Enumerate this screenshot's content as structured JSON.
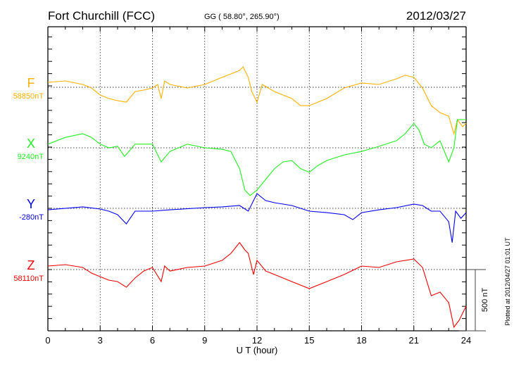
{
  "chart_data": {
    "type": "line",
    "title": "Fort Churchill (FCC)",
    "subtitle": "GG ( 58.80°, 265.90°)",
    "date": "2012/03/27",
    "xlabel": "U T (hour)",
    "xlim": [
      0,
      24
    ],
    "xticks": [
      "0",
      "3",
      "6",
      "9",
      "12",
      "15",
      "18",
      "21",
      "24"
    ],
    "grid": true,
    "scale_bar_label": "500 nT",
    "scale_bar_nT": 500,
    "plotted_note": "Plotted at 2012/04/27 01:01  UT",
    "series": [
      {
        "name": "F",
        "baseline_label": "58850nT",
        "color": "#ffb000",
        "x": [
          0,
          1,
          2,
          2.5,
          3,
          3.5,
          4,
          4.5,
          5,
          5.5,
          6,
          6.3,
          6.5,
          6.7,
          7,
          8,
          9,
          10,
          10.5,
          11,
          11.2,
          11.5,
          11.7,
          12,
          12.3,
          13,
          14,
          14.5,
          15,
          16,
          17,
          18,
          19,
          20,
          20.5,
          21,
          21.5,
          22,
          22.5,
          23,
          23.3,
          23.5,
          23.8,
          24
        ],
        "values_nT": [
          40,
          52,
          23,
          -6,
          -63,
          -92,
          -109,
          -121,
          -35,
          -23,
          -6,
          23,
          -92,
          52,
          23,
          -6,
          23,
          81,
          109,
          138,
          167,
          81,
          -35,
          -121,
          23,
          -35,
          -92,
          -150,
          -150,
          -92,
          -6,
          35,
          23,
          69,
          98,
          81,
          -6,
          -150,
          -207,
          -236,
          -380,
          -265,
          -322,
          -293
        ]
      },
      {
        "name": "X",
        "baseline_label": "9240nT",
        "color": "#22ee22",
        "x": [
          0,
          1,
          2,
          2.5,
          3,
          3.5,
          4,
          4.4,
          5,
          6,
          6.5,
          7,
          8,
          9,
          10,
          10.5,
          11,
          11.3,
          11.6,
          12,
          12.5,
          13,
          13.5,
          14,
          14.5,
          15,
          15.5,
          16,
          17,
          18,
          19,
          20,
          20.5,
          21,
          21.3,
          21.6,
          22,
          22.5,
          23,
          23.3,
          23.5,
          24
        ],
        "values_nT": [
          30,
          85,
          115,
          85,
          30,
          0,
          12,
          -70,
          30,
          30,
          -115,
          -30,
          30,
          0,
          -12,
          -30,
          -170,
          -345,
          -390,
          -345,
          -258,
          -170,
          -115,
          -104,
          -170,
          -200,
          -144,
          -104,
          -58,
          -30,
          12,
          58,
          115,
          200,
          144,
          30,
          0,
          58,
          -115,
          0,
          230,
          230
        ]
      },
      {
        "name": "Y",
        "baseline_label": "-280nT",
        "color": "#0000ee",
        "x": [
          0,
          2,
          3,
          3.5,
          4,
          4.5,
          5,
          6,
          7,
          9,
          10,
          11,
          11.5,
          12,
          12.5,
          13,
          14,
          15,
          16,
          17,
          17.5,
          18,
          19,
          20,
          21,
          21.5,
          22,
          22.5,
          23,
          23.2,
          23.4,
          23.7,
          24
        ],
        "values_nT": [
          -12,
          12,
          -6,
          -23,
          -52,
          -127,
          -23,
          -23,
          -12,
          6,
          12,
          23,
          -23,
          120,
          63,
          46,
          23,
          -23,
          -35,
          -52,
          -92,
          -35,
          -12,
          6,
          35,
          23,
          -23,
          -23,
          -109,
          -280,
          -23,
          -81,
          -35
        ]
      },
      {
        "name": "Z",
        "baseline_label": "58110nT",
        "color": "#ee0000",
        "x": [
          0,
          1,
          2,
          2.5,
          3,
          3.5,
          4,
          4.5,
          5,
          5.5,
          6,
          6.5,
          6.7,
          7,
          8,
          9,
          10,
          10.5,
          11,
          11.3,
          11.5,
          11.8,
          12,
          12.5,
          13,
          14,
          15,
          16,
          17,
          18,
          19,
          20,
          21,
          21.5,
          22,
          22.5,
          23,
          23.3,
          23.6,
          24
        ],
        "values_nT": [
          29,
          40,
          17,
          -29,
          -58,
          -86,
          -98,
          -144,
          -69,
          -12,
          17,
          -98,
          29,
          -12,
          17,
          29,
          75,
          132,
          220,
          161,
          132,
          -40,
          75,
          -12,
          -40,
          -98,
          -155,
          -98,
          -40,
          29,
          17,
          63,
          86,
          17,
          -213,
          -184,
          -270,
          -470,
          -414,
          -299
        ]
      }
    ]
  }
}
